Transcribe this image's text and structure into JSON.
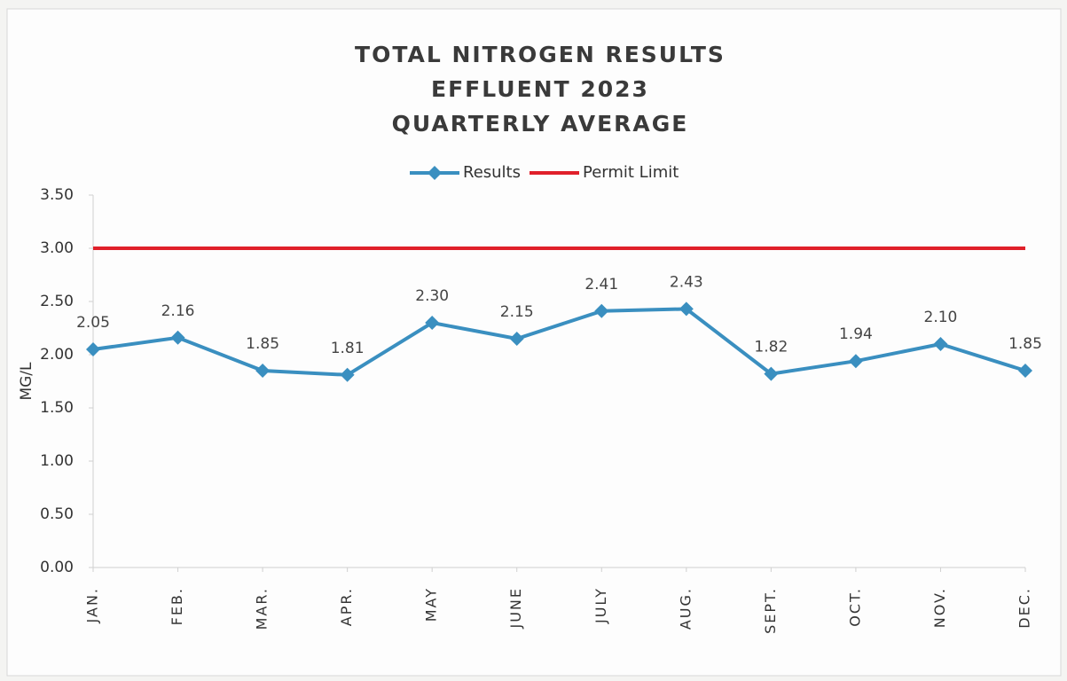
{
  "chart_data": {
    "type": "line",
    "title": [
      "TOTAL NITROGEN RESULTS",
      "EFFLUENT 2023",
      "QUARTERLY AVERAGE"
    ],
    "y_label": "MG/L",
    "categories": [
      "JAN.",
      "FEB.",
      "MAR.",
      "APR.",
      "MAY",
      "JUNE",
      "JULY",
      "AUG.",
      "SEPT.",
      "OCT.",
      "NOV.",
      "DEC."
    ],
    "series": [
      {
        "name": "Results",
        "color": "#3a8fc0",
        "marker": "diamond",
        "values": [
          2.05,
          2.16,
          1.85,
          1.81,
          2.3,
          2.15,
          2.41,
          2.43,
          1.82,
          1.94,
          2.1,
          1.85
        ],
        "value_labels": [
          "2.05",
          "2.16",
          "1.85",
          "1.81",
          "2.30",
          "2.15",
          "2.41",
          "2.43",
          "1.82",
          "1.94",
          "2.10",
          "1.85"
        ]
      },
      {
        "name": "Permit Limit",
        "color": "#e0202a",
        "values": [
          3,
          3,
          3,
          3,
          3,
          3,
          3,
          3,
          3,
          3,
          3,
          3
        ]
      }
    ],
    "ylim": [
      0,
      3.5
    ],
    "yticks": [
      {
        "value": 0,
        "label": "0.00"
      },
      {
        "value": 0.5,
        "label": "0.50"
      },
      {
        "value": 1,
        "label": "1.00"
      },
      {
        "value": 1.5,
        "label": "1.50"
      },
      {
        "value": 2,
        "label": "2.00"
      },
      {
        "value": 2.5,
        "label": "2.50"
      },
      {
        "value": 3,
        "label": "3.00"
      },
      {
        "value": 3.5,
        "label": "3.50"
      }
    ],
    "grid": false,
    "legend": "top"
  }
}
